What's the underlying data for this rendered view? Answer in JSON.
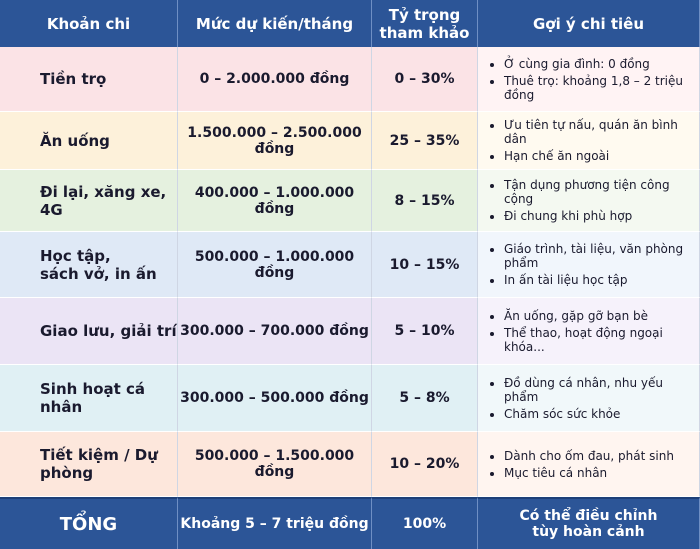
{
  "table": {
    "header": [
      "Khoản chi",
      "Mức dự kiến/tháng",
      "Tỷ trọng\ntham khảo",
      "Gợi ý chi tiêu"
    ],
    "rows": [
      {
        "item": "Tiền trọ",
        "amount": "0  –  2.000.000 đồng",
        "share": "0 – 30%",
        "tips": [
          "Ở cùng gia đình: 0 đồng",
          "Thuê trọ: khoảng 1,8 – 2 triệu đồng"
        ]
      },
      {
        "item": "Ăn uống",
        "amount": "1.500.000 – 2.500.000 đồng",
        "share": "25 – 35%",
        "tips": [
          "Ưu tiên tự nấu, quán ăn bình dân",
          "Hạn chế ăn ngoài"
        ]
      },
      {
        "item": "Đi lại, xăng xe,\n4G",
        "amount": "400.000 – 1.000.000 đồng",
        "share": "8 – 15%",
        "tips": [
          "Tận dụng phương tiện công cộng",
          "Đi chung khi phù hợp"
        ]
      },
      {
        "item": "Học tập,\nsách vở, in ấn",
        "amount": "500.000 – 1.000.000 đồng",
        "share": "10 – 15%",
        "tips": [
          "Giáo trình, tài liệu, văn phòng phẩm",
          "In ấn tài liệu học tập"
        ]
      },
      {
        "item": "Giao lưu, giải trí",
        "amount": "300.000 – 700.000 đồng",
        "share": "5 – 10%",
        "tips": [
          "Ăn uống, gặp gỡ bạn bè",
          "Thể thao, hoạt động ngoại khóa..."
        ]
      },
      {
        "item": "Sinh hoạt cá nhân",
        "amount": "300.000 – 500.000 đồng",
        "share": "5 – 8%",
        "tips": [
          "Đồ dùng cá nhân, nhu yếu phẩm",
          "Chăm sóc sức khỏe"
        ]
      },
      {
        "item": "Tiết kiệm / Dự phòng",
        "amount": "500.000 – 1.500.000 đồng",
        "share": "10 – 20%",
        "tips": [
          "Dành cho ốm đau, phát sinh",
          "Mục tiêu cá nhân"
        ]
      }
    ],
    "footer": [
      "TỔNG",
      "Khoảng 5 – 7 triệu đồng",
      "100%",
      "Có thể điều chỉnh\ntùy hoàn cảnh"
    ]
  }
}
